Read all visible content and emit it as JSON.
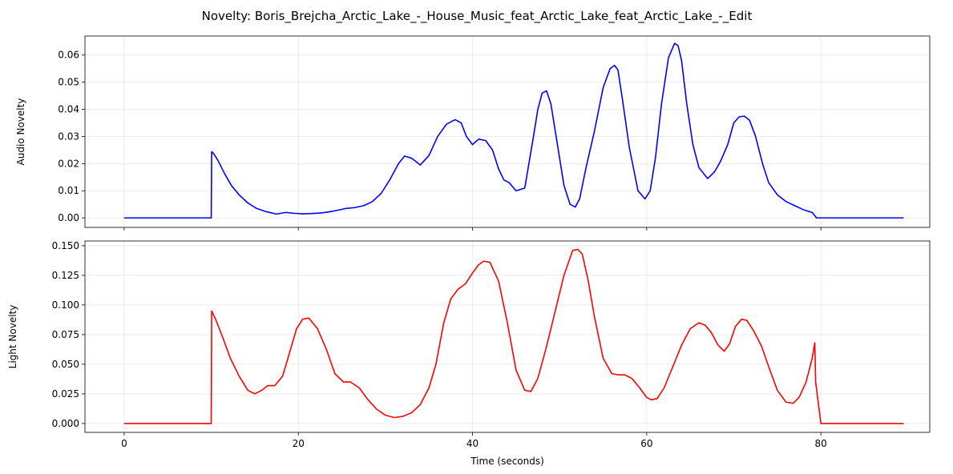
{
  "title": "Novelty: Boris_Brejcha_Arctic_Lake_-_House_Music_feat_Arctic_Lake_feat_Arctic_Lake_-_Edit",
  "chart_data": [
    {
      "type": "line",
      "ylabel": "Audio Novelty",
      "xlabel": "",
      "xlim": [
        -4.5,
        92.5
      ],
      "ylim": [
        -0.0035,
        0.067
      ],
      "xticks": [
        0,
        20,
        40,
        60,
        80
      ],
      "xtick_labels_shown": false,
      "yticks": [
        0.0,
        0.01,
        0.02,
        0.03,
        0.04,
        0.05,
        0.06
      ],
      "ytick_labels": [
        "0.00",
        "0.01",
        "0.02",
        "0.03",
        "0.04",
        "0.05",
        "0.06"
      ],
      "grid": true,
      "series": [
        {
          "color": "#0000ff",
          "x": [
            0,
            10,
            10.05,
            10.3,
            10.8,
            11.5,
            12.3,
            13.2,
            14.2,
            15.2,
            16.3,
            17.5,
            18.5,
            19.5,
            20.5,
            21.5,
            22.5,
            23.5,
            24.5,
            25.5,
            26.5,
            27.5,
            28.5,
            29.5,
            30.5,
            31.5,
            32.2,
            33,
            34,
            35,
            36,
            37,
            38,
            38.7,
            39.3,
            40,
            40.7,
            41.5,
            42.3,
            43,
            43.6,
            44.2,
            45,
            46,
            47,
            47.5,
            48,
            48.5,
            49,
            49.7,
            50.5,
            51.2,
            51.8,
            52.3,
            53,
            54,
            55,
            55.8,
            56.3,
            56.7,
            57.2,
            58,
            59,
            59.8,
            60.4,
            61,
            61.7,
            62.5,
            63.2,
            63.6,
            64,
            64.6,
            65.3,
            66,
            67,
            67.8,
            68.5,
            69.3,
            70,
            70.6,
            71.2,
            71.8,
            72.5,
            73.3,
            74,
            75,
            76,
            77,
            78,
            79,
            79.3,
            79.5,
            80,
            89.5
          ],
          "values": [
            0,
            0,
            0.0244,
            0.0236,
            0.021,
            0.0165,
            0.012,
            0.0085,
            0.0055,
            0.0035,
            0.0023,
            0.0014,
            0.002,
            0.0017,
            0.0015,
            0.0016,
            0.0018,
            0.0022,
            0.0028,
            0.0035,
            0.0038,
            0.0045,
            0.006,
            0.009,
            0.014,
            0.02,
            0.0228,
            0.022,
            0.0195,
            0.023,
            0.03,
            0.0345,
            0.0362,
            0.035,
            0.03,
            0.027,
            0.029,
            0.0285,
            0.025,
            0.018,
            0.014,
            0.013,
            0.01,
            0.011,
            0.03,
            0.04,
            0.046,
            0.0468,
            0.042,
            0.028,
            0.012,
            0.005,
            0.004,
            0.007,
            0.018,
            0.032,
            0.048,
            0.055,
            0.0562,
            0.0545,
            0.044,
            0.026,
            0.01,
            0.007,
            0.01,
            0.022,
            0.042,
            0.059,
            0.0643,
            0.0635,
            0.058,
            0.042,
            0.027,
            0.0185,
            0.0145,
            0.017,
            0.021,
            0.027,
            0.035,
            0.0372,
            0.0375,
            0.036,
            0.03,
            0.02,
            0.013,
            0.0085,
            0.006,
            0.0045,
            0.003,
            0.002,
            0.0008,
            0,
            0,
            0
          ]
        }
      ]
    },
    {
      "type": "line",
      "ylabel": "Light Novelty",
      "xlabel": "Time (seconds)",
      "xlim": [
        -4.5,
        92.5
      ],
      "ylim": [
        -0.0075,
        0.154
      ],
      "xticks": [
        0,
        20,
        40,
        60,
        80
      ],
      "xtick_labels": [
        "0",
        "20",
        "40",
        "60",
        "80"
      ],
      "yticks": [
        0.0,
        0.025,
        0.05,
        0.075,
        0.1,
        0.125,
        0.15
      ],
      "ytick_labels": [
        "0.000",
        "0.025",
        "0.050",
        "0.075",
        "0.100",
        "0.125",
        "0.150"
      ],
      "grid": true,
      "series": [
        {
          "color": "#ff0000",
          "x": [
            0,
            10,
            10.05,
            10.5,
            11.3,
            12.2,
            13.2,
            14.2,
            15,
            15.8,
            16.5,
            17.3,
            18.2,
            19,
            19.8,
            20.5,
            21.2,
            22.2,
            23.2,
            24.2,
            25.2,
            26,
            27,
            28,
            29,
            30,
            31,
            32,
            33,
            34,
            35,
            35.8,
            36.7,
            37.5,
            38.3,
            39.2,
            40,
            40.7,
            41.3,
            42,
            43,
            44,
            45,
            46,
            46.7,
            47.5,
            48.5,
            49.5,
            50.5,
            51.5,
            52.1,
            52.6,
            53.3,
            54,
            55,
            56,
            56.8,
            57.5,
            58.3,
            59.2,
            60,
            60.5,
            61.2,
            62,
            63,
            64,
            65,
            66,
            66.7,
            67.4,
            68.2,
            68.9,
            69.5,
            70.2,
            70.9,
            71.5,
            72.3,
            73.2,
            74,
            75,
            76,
            76.8,
            77.5,
            78.3,
            79,
            79.3,
            79.4,
            80,
            89.5
          ],
          "values": [
            0,
            0,
            0.095,
            0.088,
            0.073,
            0.055,
            0.04,
            0.028,
            0.025,
            0.028,
            0.032,
            0.032,
            0.04,
            0.06,
            0.08,
            0.088,
            0.089,
            0.08,
            0.063,
            0.042,
            0.035,
            0.035,
            0.03,
            0.02,
            0.012,
            0.007,
            0.005,
            0.006,
            0.009,
            0.016,
            0.03,
            0.05,
            0.085,
            0.105,
            0.113,
            0.118,
            0.127,
            0.134,
            0.137,
            0.136,
            0.12,
            0.085,
            0.045,
            0.028,
            0.027,
            0.038,
            0.065,
            0.095,
            0.125,
            0.146,
            0.147,
            0.143,
            0.12,
            0.09,
            0.055,
            0.042,
            0.041,
            0.041,
            0.038,
            0.03,
            0.022,
            0.02,
            0.021,
            0.03,
            0.048,
            0.066,
            0.08,
            0.085,
            0.083,
            0.077,
            0.066,
            0.061,
            0.067,
            0.082,
            0.088,
            0.087,
            0.078,
            0.065,
            0.048,
            0.028,
            0.018,
            0.017,
            0.022,
            0.035,
            0.055,
            0.068,
            0.035,
            0,
            0
          ]
        }
      ]
    }
  ]
}
